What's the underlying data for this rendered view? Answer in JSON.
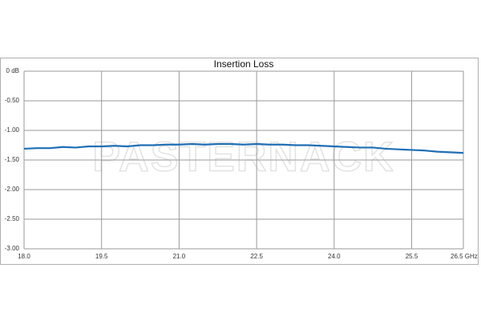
{
  "chart_data": {
    "type": "line",
    "title": "Insertion Loss",
    "watermark": "PASTERNACK",
    "x": [
      18.0,
      18.25,
      18.5,
      18.75,
      19.0,
      19.25,
      19.5,
      19.75,
      20.0,
      20.25,
      20.5,
      20.75,
      21.0,
      21.25,
      21.5,
      21.75,
      22.0,
      22.25,
      22.5,
      22.75,
      23.0,
      23.25,
      23.5,
      23.75,
      24.0,
      24.25,
      24.5,
      24.75,
      25.0,
      25.25,
      25.5,
      25.75,
      26.0,
      26.25,
      26.5
    ],
    "series": [
      {
        "color": "#1f6fb5",
        "values": [
          -1.31,
          -1.3,
          -1.3,
          -1.28,
          -1.29,
          -1.27,
          -1.27,
          -1.26,
          -1.27,
          -1.25,
          -1.25,
          -1.24,
          -1.24,
          -1.23,
          -1.24,
          -1.23,
          -1.23,
          -1.24,
          -1.23,
          -1.24,
          -1.24,
          -1.25,
          -1.25,
          -1.26,
          -1.27,
          -1.28,
          -1.29,
          -1.29,
          -1.31,
          -1.32,
          -1.33,
          -1.34,
          -1.36,
          -1.37,
          -1.38
        ]
      }
    ],
    "xlim": [
      18.0,
      26.5
    ],
    "xticks": [
      {
        "value": 18.0,
        "label": "18.0"
      },
      {
        "value": 19.5,
        "label": "19.5"
      },
      {
        "value": 21.0,
        "label": "21.0"
      },
      {
        "value": 22.5,
        "label": "22.5"
      },
      {
        "value": 24.0,
        "label": "24.0"
      },
      {
        "value": 25.5,
        "label": "25.5"
      },
      {
        "value": 26.5,
        "label": "26.5 GHz"
      }
    ],
    "ylim": [
      -3.0,
      0
    ],
    "yticks": [
      {
        "value": 0,
        "label": "0 dB"
      },
      {
        "value": -0.5,
        "label": "-0.50"
      },
      {
        "value": -1.0,
        "label": "-1.00"
      },
      {
        "value": -1.5,
        "label": "-1.50"
      },
      {
        "value": -2.0,
        "label": "-2.00"
      },
      {
        "value": -2.5,
        "label": "-2.50"
      },
      {
        "value": -3.0,
        "label": "-3.00"
      }
    ],
    "grid": true
  }
}
